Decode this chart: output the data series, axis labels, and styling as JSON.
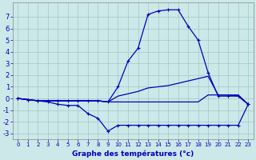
{
  "xlabel": "Graphe des températures (°c)",
  "background_color": "#cce8e8",
  "grid_color": "#a0c8c8",
  "line_color": "#0000bb",
  "hours": [
    0,
    1,
    2,
    3,
    4,
    5,
    6,
    7,
    8,
    9,
    10,
    11,
    12,
    13,
    14,
    15,
    16,
    17,
    18,
    19,
    20,
    21,
    22,
    23
  ],
  "temp_main": [
    0.0,
    -0.1,
    -0.2,
    -0.2,
    -0.2,
    -0.2,
    -0.2,
    -0.2,
    -0.2,
    -0.3,
    1.0,
    3.2,
    4.3,
    7.2,
    7.5,
    7.6,
    7.6,
    6.2,
    5.0,
    2.2,
    0.2,
    0.2,
    0.2,
    -0.5
  ],
  "temp_dip": [
    0.0,
    -0.1,
    -0.2,
    -0.3,
    -0.5,
    -0.6,
    -0.6,
    -1.3,
    -1.7,
    -2.8,
    -2.3,
    -2.3,
    -2.3,
    -2.3,
    -2.3,
    -2.3,
    -2.3,
    -2.3,
    -2.3,
    -2.3,
    -2.3,
    -2.3,
    -2.3,
    -0.5
  ],
  "temp_flat1": [
    0.0,
    -0.1,
    -0.2,
    -0.2,
    -0.2,
    -0.2,
    -0.2,
    -0.2,
    -0.2,
    -0.3,
    -0.3,
    -0.3,
    -0.3,
    -0.3,
    -0.3,
    -0.3,
    -0.3,
    -0.3,
    -0.3,
    0.3,
    0.3,
    0.3,
    0.3,
    -0.5
  ],
  "temp_rise": [
    0.0,
    -0.1,
    -0.2,
    -0.2,
    -0.2,
    -0.2,
    -0.2,
    -0.2,
    -0.2,
    -0.3,
    0.2,
    0.4,
    0.6,
    0.9,
    1.0,
    1.1,
    1.3,
    1.5,
    1.7,
    1.9,
    0.3,
    0.3,
    0.2,
    -0.5
  ],
  "ylim": [
    -3.5,
    8.2
  ],
  "yticks": [
    -3,
    -2,
    -1,
    0,
    1,
    2,
    3,
    4,
    5,
    6,
    7
  ],
  "figsize": [
    3.2,
    2.0
  ],
  "dpi": 100
}
